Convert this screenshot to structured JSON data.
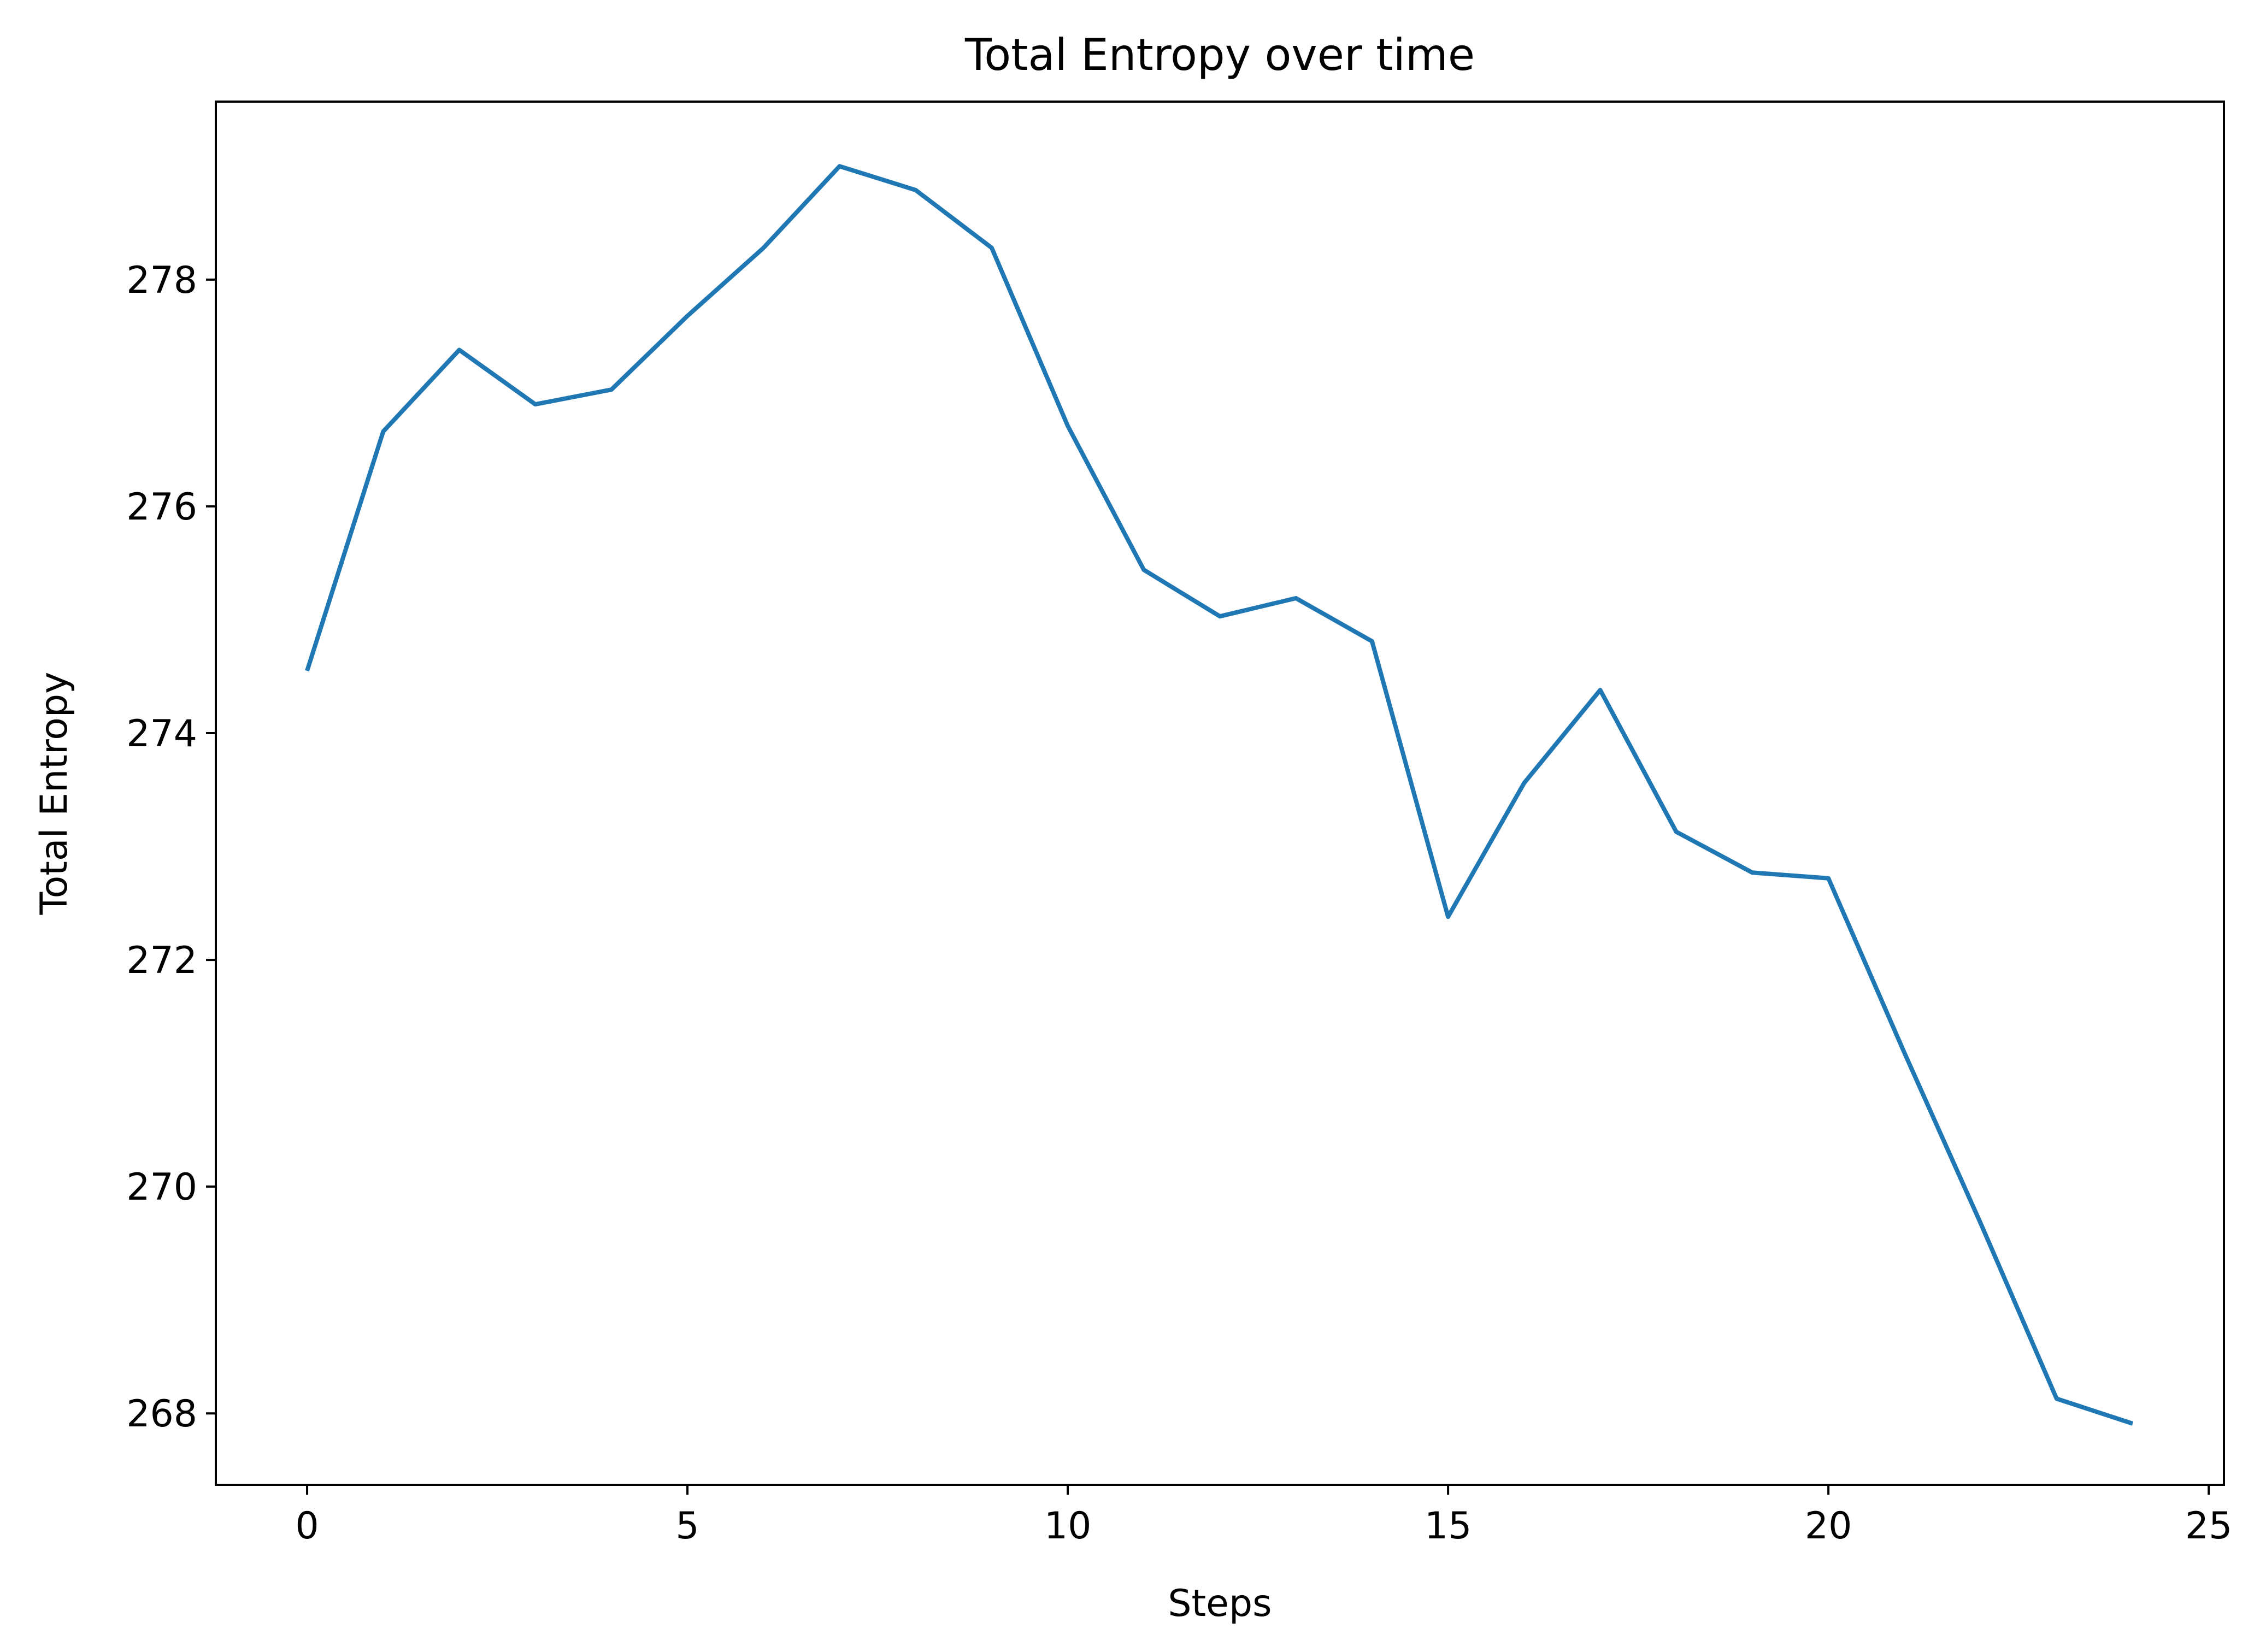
{
  "chart_data": {
    "type": "line",
    "title": "Total Entropy over time",
    "xlabel": "Steps",
    "ylabel": "Total Entropy",
    "xlim": [
      -1.2,
      25.2
    ],
    "ylim": [
      267.37,
      279.57
    ],
    "xticks": [
      0,
      5,
      10,
      15,
      20,
      25
    ],
    "yticks": [
      268,
      270,
      272,
      274,
      276,
      278
    ],
    "grid": false,
    "series": [
      {
        "color": "#1f77b4",
        "x": [
          0,
          1,
          2,
          3,
          4,
          5,
          6,
          7,
          8,
          9,
          10,
          11,
          12,
          13,
          14,
          15,
          16,
          17,
          18,
          19,
          20,
          21,
          22,
          23,
          24
        ],
        "y": [
          274.55,
          276.66,
          277.38,
          276.9,
          277.03,
          277.68,
          278.28,
          279.0,
          278.79,
          278.28,
          276.71,
          275.44,
          275.03,
          275.19,
          274.81,
          272.38,
          273.56,
          274.38,
          273.13,
          272.77,
          272.72,
          271.18,
          269.68,
          268.13,
          267.91
        ]
      }
    ]
  }
}
